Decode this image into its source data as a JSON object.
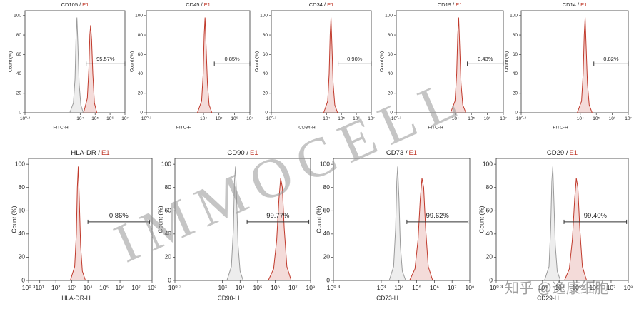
{
  "chart_data": [
    {
      "type": "area",
      "title": "CD105 /",
      "sample": "E1",
      "xlabel": "FITC-H",
      "ylabel": "Count (%)",
      "xscale": "log",
      "xlim": [
        2,
        10000000
      ],
      "ylim": [
        0,
        105
      ],
      "yticks": [
        0,
        20,
        40,
        60,
        80,
        100
      ],
      "xticks": [
        {
          "value": 2,
          "label": "10⁰·³"
        },
        {
          "value": 10000,
          "label": "10⁴"
        },
        {
          "value": 100000,
          "label": "10⁵"
        },
        {
          "value": 1000000,
          "label": "10⁶"
        },
        {
          "value": 10000000,
          "label": "10⁷"
        }
      ],
      "gate": {
        "range": [
          25000,
          10000000
        ],
        "percent": 95.57,
        "label": "95.57%"
      },
      "series": [
        {
          "color": "#9a9a9a",
          "x": [
            2000,
            3500,
            4500,
            5200,
            6000,
            7000,
            8500,
            11000,
            16000
          ],
          "values": [
            0,
            10,
            35,
            75,
            98,
            70,
            30,
            8,
            0
          ]
        },
        {
          "color": "#c0392b",
          "x": [
            17000,
            30000,
            38000,
            44000,
            50000,
            58000,
            70000,
            90000,
            130000
          ],
          "values": [
            0,
            15,
            45,
            80,
            90,
            75,
            40,
            10,
            0
          ]
        }
      ]
    },
    {
      "type": "area",
      "title": "CD45 /",
      "sample": "E1",
      "xlabel": "FITC-H",
      "ylabel": "Count (%)",
      "xscale": "log",
      "xlim": [
        2,
        10000000
      ],
      "ylim": [
        0,
        105
      ],
      "yticks": [
        0,
        20,
        40,
        60,
        80,
        100
      ],
      "xticks": [
        {
          "value": 2,
          "label": "10⁰·³"
        },
        {
          "value": 10000,
          "label": "10⁴"
        },
        {
          "value": 100000,
          "label": "10⁵"
        },
        {
          "value": 1000000,
          "label": "10⁶"
        },
        {
          "value": 10000000,
          "label": "10⁷"
        }
      ],
      "gate": {
        "range": [
          50000,
          10000000
        ],
        "percent": 0.85,
        "label": "0.85%"
      },
      "series": [
        {
          "color": "#c0392b",
          "x": [
            4000,
            7500,
            9500,
            11000,
            12600,
            14500,
            18000,
            23000,
            35000
          ],
          "values": [
            0,
            12,
            40,
            80,
            98,
            70,
            30,
            8,
            0
          ]
        }
      ]
    },
    {
      "type": "area",
      "title": "CD34 /",
      "sample": "E1",
      "xlabel": "CD34-H",
      "ylabel": "Count (%)",
      "xscale": "log",
      "xlim": [
        2,
        10000000
      ],
      "ylim": [
        0,
        105
      ],
      "yticks": [
        0,
        20,
        40,
        60,
        80,
        100
      ],
      "xticks": [
        {
          "value": 2,
          "label": "10⁰·³"
        },
        {
          "value": 10000,
          "label": "10⁴"
        },
        {
          "value": 100000,
          "label": "10⁵"
        },
        {
          "value": 1000000,
          "label": "10⁶"
        },
        {
          "value": 10000000,
          "label": "10⁷"
        }
      ],
      "gate": {
        "range": [
          60000,
          10000000
        ],
        "percent": 0.9,
        "label": "0.90%"
      },
      "series": [
        {
          "color": "#c0392b",
          "x": [
            6500,
            12000,
            15000,
            17500,
            20000,
            23000,
            28000,
            36000,
            55000
          ],
          "values": [
            0,
            12,
            40,
            80,
            98,
            70,
            30,
            8,
            0
          ]
        }
      ]
    },
    {
      "type": "area",
      "title": "CD19 /",
      "sample": "E1",
      "xlabel": "FITC-H",
      "ylabel": "Count (%)",
      "xscale": "log",
      "xlim": [
        2,
        10000000
      ],
      "ylim": [
        0,
        105
      ],
      "yticks": [
        0,
        20,
        40,
        60,
        80,
        100
      ],
      "xticks": [
        {
          "value": 2,
          "label": "10⁰·³"
        },
        {
          "value": 10000,
          "label": "10⁴"
        },
        {
          "value": 100000,
          "label": "10⁵"
        },
        {
          "value": 1000000,
          "label": "10⁶"
        },
        {
          "value": 10000000,
          "label": "10⁷"
        }
      ],
      "gate": {
        "range": [
          56000,
          10000000
        ],
        "percent": 0.43,
        "label": "0.43%"
      },
      "series": [
        {
          "color": "#c0392b",
          "x": [
            5000,
            9500,
            12000,
            14000,
            16000,
            18500,
            22500,
            29000,
            45000
          ],
          "values": [
            0,
            12,
            40,
            80,
            98,
            70,
            30,
            8,
            0
          ]
        }
      ]
    },
    {
      "type": "area",
      "title": "CD14 /",
      "sample": "E1",
      "xlabel": "FITC-H",
      "ylabel": "Count (%)",
      "xscale": "log",
      "xlim": [
        2,
        10000000
      ],
      "ylim": [
        0,
        105
      ],
      "yticks": [
        0,
        20,
        40,
        60,
        80,
        100
      ],
      "xticks": [
        {
          "value": 2,
          "label": "10⁰·³"
        },
        {
          "value": 10000,
          "label": "10⁴"
        },
        {
          "value": 100000,
          "label": "10⁵"
        },
        {
          "value": 1000000,
          "label": "10⁶"
        },
        {
          "value": 10000000,
          "label": "10⁷"
        }
      ],
      "gate": {
        "range": [
          70000,
          10000000
        ],
        "percent": 0.82,
        "label": "0.82%"
      },
      "series": [
        {
          "color": "#c0392b",
          "x": [
            6500,
            12000,
            15000,
            17500,
            20000,
            23000,
            28000,
            36000,
            55000
          ],
          "values": [
            0,
            12,
            40,
            80,
            98,
            70,
            30,
            8,
            0
          ]
        }
      ]
    },
    {
      "type": "area",
      "title": "HLA-DR /",
      "sample": "E1",
      "xlabel": "HLA-DR-H",
      "ylabel": "Count (%)",
      "xscale": "log",
      "xlim": [
        2,
        100000000
      ],
      "ylim": [
        0,
        105
      ],
      "yticks": [
        0,
        20,
        40,
        60,
        80,
        100
      ],
      "xticks": [
        {
          "value": 2,
          "label": "10⁰·³"
        },
        {
          "value": 10,
          "label": "10¹"
        },
        {
          "value": 100,
          "label": "10²"
        },
        {
          "value": 1000,
          "label": "10³"
        },
        {
          "value": 10000,
          "label": "10⁴"
        },
        {
          "value": 100000,
          "label": "10⁵"
        },
        {
          "value": 1000000,
          "label": "10⁶"
        },
        {
          "value": 10000000,
          "label": "10⁷"
        },
        {
          "value": 100000000,
          "label": "10⁸"
        }
      ],
      "gate": {
        "range": [
          10000,
          70000000
        ],
        "percent": 0.86,
        "label": "0.86%"
      },
      "series": [
        {
          "color": "#c0392b",
          "x": [
            800,
            1500,
            1900,
            2200,
            2500,
            2900,
            3500,
            4500,
            7000
          ],
          "values": [
            0,
            12,
            40,
            80,
            98,
            70,
            30,
            8,
            0
          ]
        }
      ]
    },
    {
      "type": "area",
      "title": "CD90 /",
      "sample": "E1",
      "xlabel": "CD90-H",
      "ylabel": "Count (%)",
      "xscale": "log",
      "xlim": [
        2,
        100000000
      ],
      "ylim": [
        0,
        105
      ],
      "yticks": [
        0,
        20,
        40,
        60,
        80,
        100
      ],
      "xticks": [
        {
          "value": 2,
          "label": "10⁰·³"
        },
        {
          "value": 1000,
          "label": "10³"
        },
        {
          "value": 10000,
          "label": "10⁴"
        },
        {
          "value": 100000,
          "label": "10⁵"
        },
        {
          "value": 1000000,
          "label": "10⁶"
        },
        {
          "value": 10000000,
          "label": "10⁷"
        },
        {
          "value": 100000000,
          "label": "10⁸"
        }
      ],
      "gate": {
        "range": [
          25000,
          80000000
        ],
        "percent": 99.77,
        "label": "99.77%"
      },
      "series": [
        {
          "color": "#9a9a9a",
          "x": [
            1800,
            3200,
            4200,
            4800,
            5500,
            6400,
            7700,
            10000,
            15000
          ],
          "values": [
            0,
            12,
            45,
            85,
            98,
            70,
            30,
            8,
            0
          ]
        },
        {
          "color": "#c0392b",
          "x": [
            400000,
            800000,
            1200000,
            1600000,
            2000000,
            2500000,
            3200000,
            4500000,
            8000000
          ],
          "values": [
            0,
            10,
            35,
            70,
            88,
            80,
            45,
            12,
            0
          ]
        }
      ]
    },
    {
      "type": "area",
      "title": "CD73 /",
      "sample": "E1",
      "xlabel": "CD73-H",
      "ylabel": "Count (%)",
      "xscale": "log",
      "xlim": [
        2,
        100000000
      ],
      "ylim": [
        0,
        105
      ],
      "yticks": [
        0,
        20,
        40,
        60,
        80,
        100
      ],
      "xticks": [
        {
          "value": 2,
          "label": "10⁰·³"
        },
        {
          "value": 1000,
          "label": "10³"
        },
        {
          "value": 10000,
          "label": "10⁴"
        },
        {
          "value": 100000,
          "label": "10⁵"
        },
        {
          "value": 1000000,
          "label": "10⁶"
        },
        {
          "value": 10000000,
          "label": "10⁷"
        },
        {
          "value": 100000000,
          "label": "10⁸"
        }
      ],
      "gate": {
        "range": [
          28000,
          80000000
        ],
        "percent": 99.62,
        "label": "99.62%"
      },
      "series": [
        {
          "color": "#9a9a9a",
          "x": [
            2800,
            5000,
            6500,
            7500,
            8500,
            10000,
            12000,
            15500,
            24000
          ],
          "values": [
            0,
            12,
            45,
            85,
            98,
            70,
            30,
            8,
            0
          ]
        },
        {
          "color": "#c0392b",
          "x": [
            40000,
            80000,
            120000,
            160000,
            200000,
            250000,
            320000,
            450000,
            800000
          ],
          "values": [
            0,
            10,
            35,
            70,
            88,
            80,
            45,
            12,
            0
          ]
        }
      ]
    },
    {
      "type": "area",
      "title": "CD29 /",
      "sample": "E1",
      "xlabel": "CD29-H",
      "ylabel": "Count (%)",
      "xscale": "log",
      "xlim": [
        2,
        100000000
      ],
      "ylim": [
        0,
        105
      ],
      "yticks": [
        0,
        20,
        40,
        60,
        80,
        100
      ],
      "xticks": [
        {
          "value": 2,
          "label": "10⁰·³"
        },
        {
          "value": 1000,
          "label": "10³"
        },
        {
          "value": 10000,
          "label": "10⁴"
        },
        {
          "value": 100000,
          "label": "10⁵"
        },
        {
          "value": 1000000,
          "label": "10⁶"
        },
        {
          "value": 10000000,
          "label": "10⁷"
        },
        {
          "value": 100000000,
          "label": "10⁸"
        }
      ],
      "gate": {
        "range": [
          18000,
          80000000
        ],
        "percent": 99.4,
        "label": "99.40%"
      },
      "series": [
        {
          "color": "#9a9a9a",
          "x": [
            1300,
            2400,
            3000,
            3500,
            4000,
            4600,
            5600,
            7200,
            11000
          ],
          "values": [
            0,
            12,
            45,
            85,
            98,
            70,
            30,
            8,
            0
          ]
        },
        {
          "color": "#c0392b",
          "x": [
            19000,
            37000,
            55000,
            75000,
            93000,
            115000,
            150000,
            210000,
            370000
          ],
          "values": [
            0,
            10,
            35,
            70,
            88,
            80,
            45,
            12,
            0
          ]
        }
      ]
    }
  ],
  "watermark": {
    "text": "IMMOCELL",
    "credit": "知乎 @逸康细胞"
  }
}
